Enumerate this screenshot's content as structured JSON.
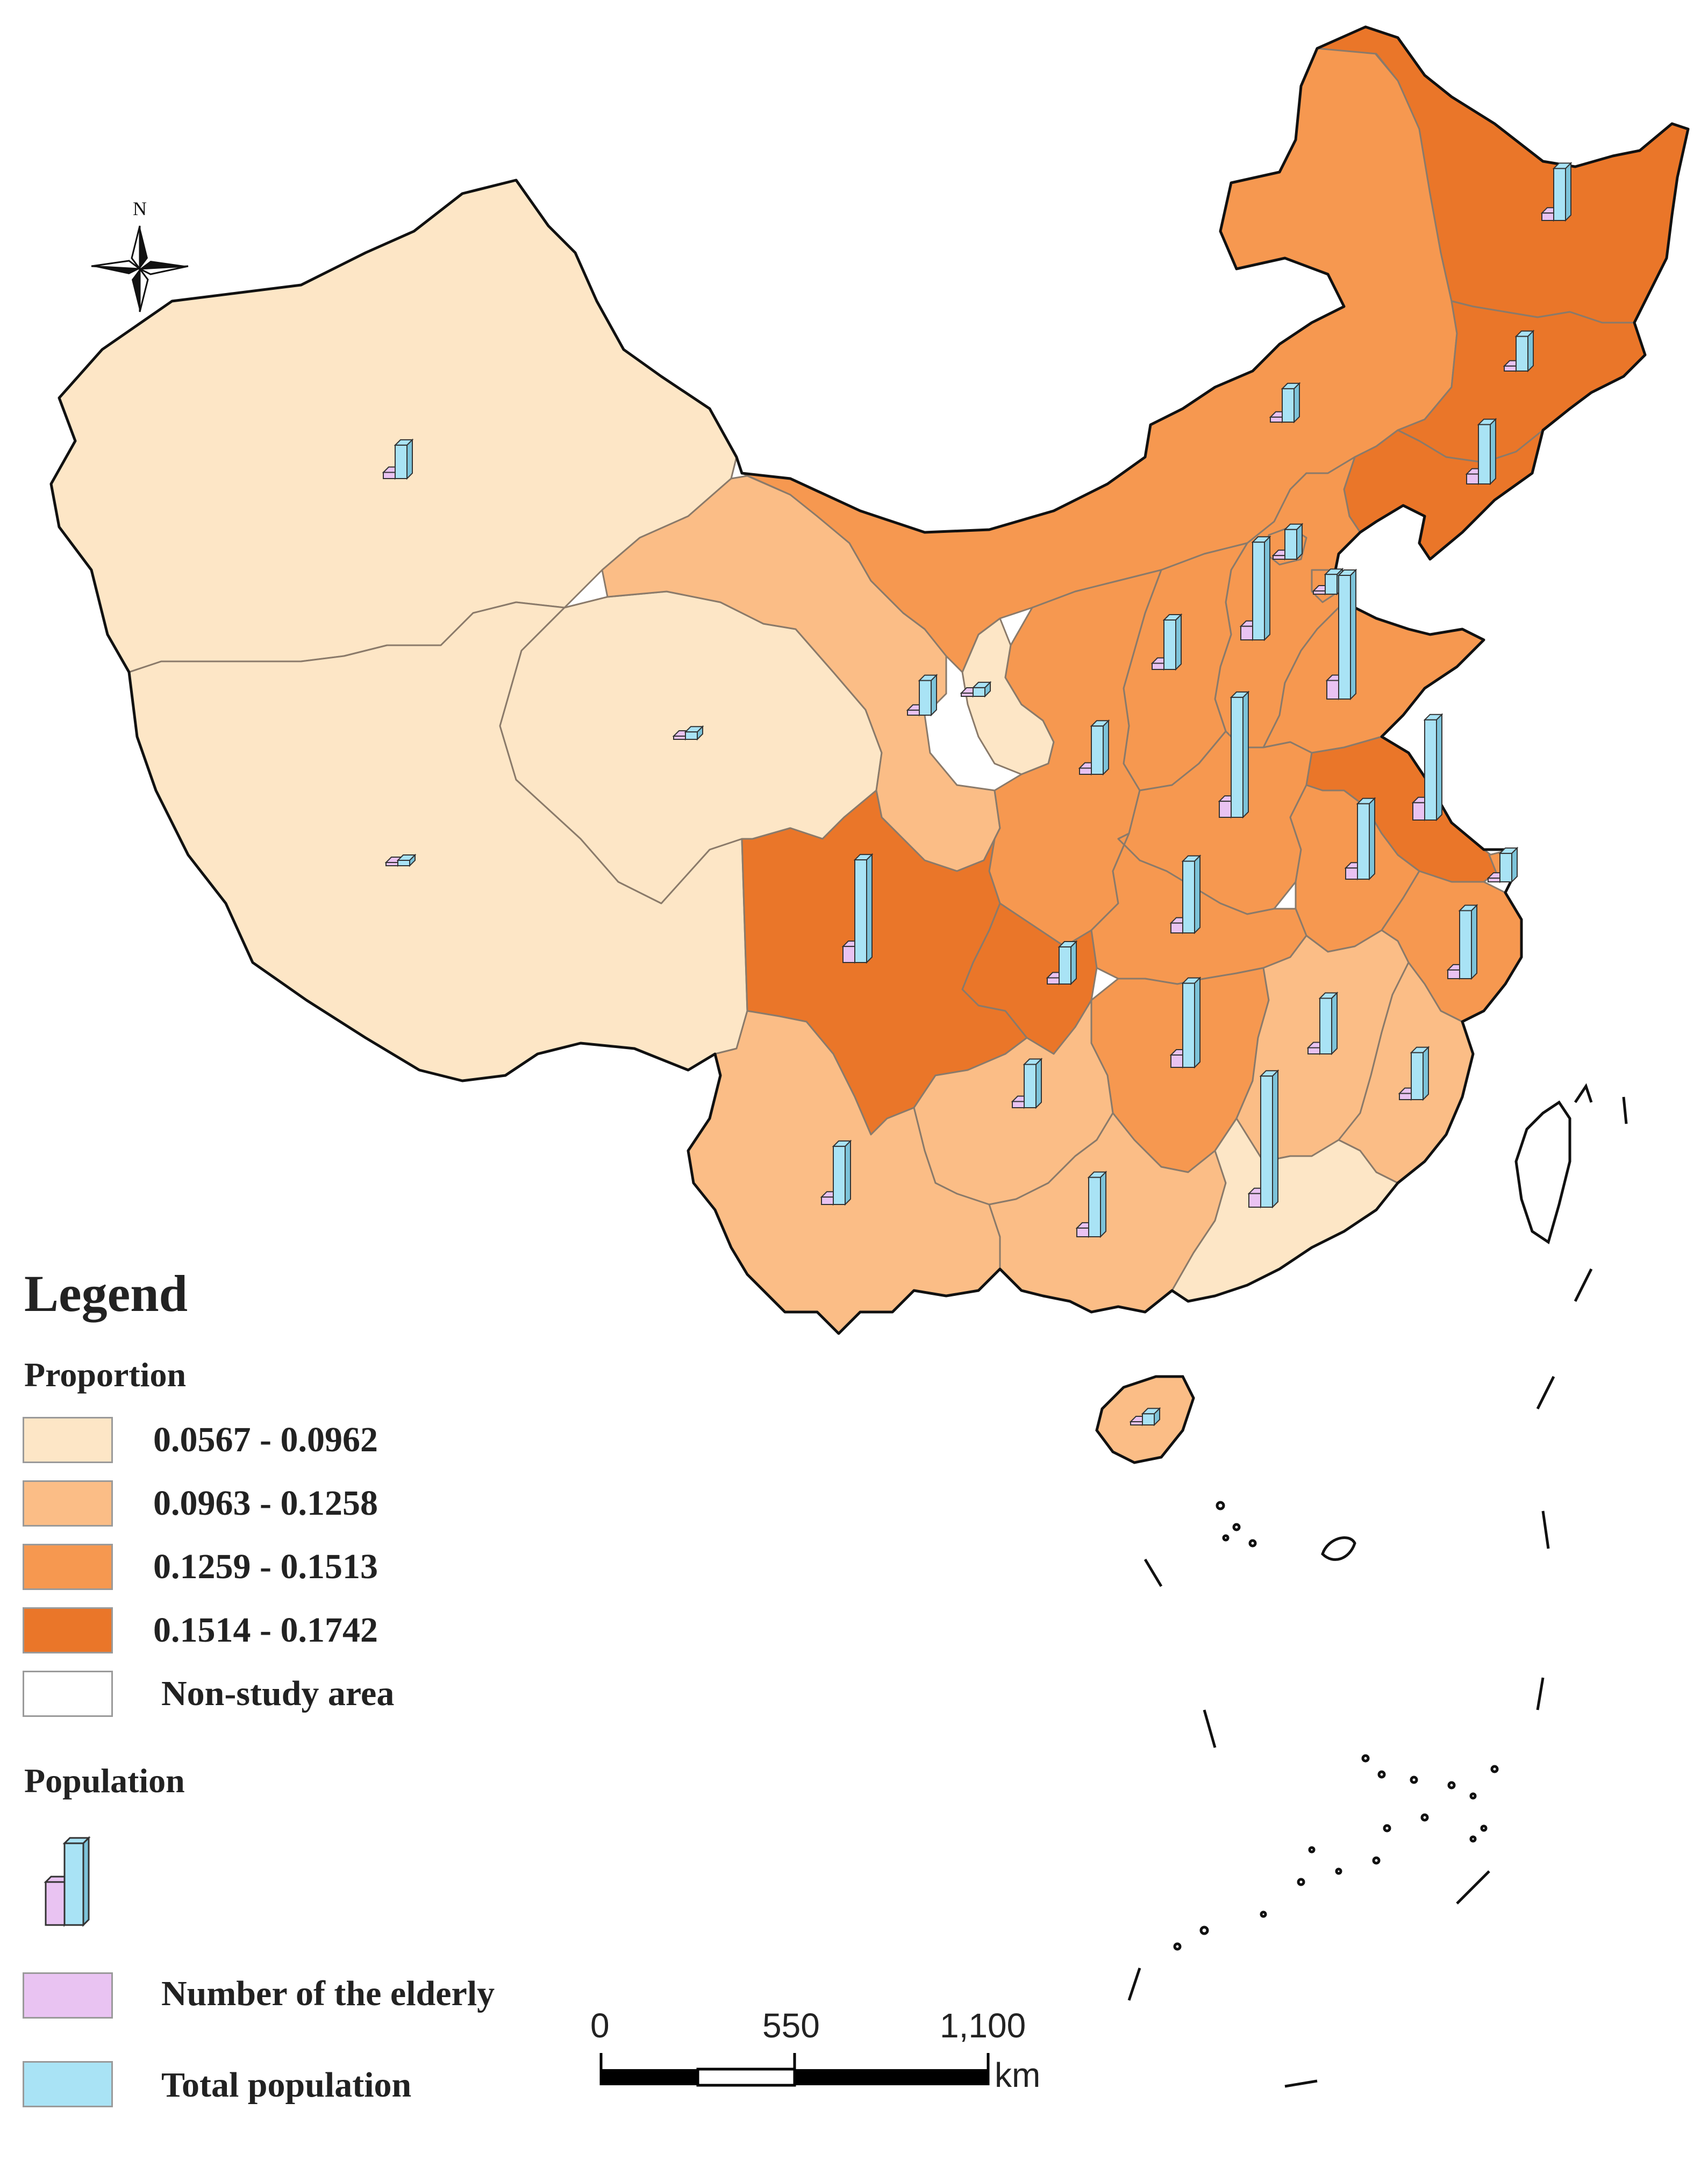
{
  "north_arrow": {
    "label": "N"
  },
  "legend": {
    "title": "Legend",
    "proportion": {
      "heading": "Proportion",
      "classes": [
        {
          "label": "0.0567 - 0.0962",
          "color": "#fde6c6"
        },
        {
          "label": "0.0963 - 0.1258",
          "color": "#fbbd86"
        },
        {
          "label": "0.1259 - 0.1513",
          "color": "#f69850"
        },
        {
          "label": "0.1514 - 0.1742",
          "color": "#ea7629"
        }
      ],
      "non_study": {
        "label": "Non-study area",
        "color": "#ffffff"
      }
    },
    "population": {
      "heading": "Population",
      "elderly": {
        "label": "Number of the elderly",
        "color": "#e9c3f2"
      },
      "total": {
        "label": "Total population",
        "color": "#a9e3f5"
      }
    }
  },
  "scale_bar": {
    "ticks": [
      "0",
      "550",
      "1,100"
    ],
    "unit": "km"
  },
  "bar_symbols": [
    {
      "region": "Xinjiang",
      "total": 0.27,
      "elderly": 0.05
    },
    {
      "region": "Qinghai",
      "total": 0.06,
      "elderly": 0.01
    },
    {
      "region": "Tibet",
      "total": 0.04,
      "elderly": 0.01
    },
    {
      "region": "Heilongjiang",
      "total": 0.42,
      "elderly": 0.06
    },
    {
      "region": "Jilin",
      "total": 0.28,
      "elderly": 0.04
    },
    {
      "region": "Liaoning",
      "total": 0.48,
      "elderly": 0.08
    },
    {
      "region": "Inner Mongolia",
      "total": 0.27,
      "elderly": 0.04
    },
    {
      "region": "Beijing",
      "total": 0.24,
      "elderly": 0.03
    },
    {
      "region": "Tianjin",
      "total": 0.16,
      "elderly": 0.02
    },
    {
      "region": "Hebei",
      "total": 0.79,
      "elderly": 0.11
    },
    {
      "region": "Shanxi",
      "total": 0.4,
      "elderly": 0.05
    },
    {
      "region": "Shandong",
      "total": 1.0,
      "elderly": 0.15
    },
    {
      "region": "Ningxia",
      "total": 0.07,
      "elderly": 0.01
    },
    {
      "region": "Gansu",
      "total": 0.28,
      "elderly": 0.04
    },
    {
      "region": "Shaanxi",
      "total": 0.39,
      "elderly": 0.05
    },
    {
      "region": "Henan",
      "total": 0.97,
      "elderly": 0.13
    },
    {
      "region": "Jiangsu",
      "total": 0.81,
      "elderly": 0.14
    },
    {
      "region": "Anhui",
      "total": 0.61,
      "elderly": 0.09
    },
    {
      "region": "Shanghai",
      "total": 0.23,
      "elderly": 0.03
    },
    {
      "region": "Hubei",
      "total": 0.58,
      "elderly": 0.08
    },
    {
      "region": "Sichuan",
      "total": 0.83,
      "elderly": 0.13
    },
    {
      "region": "Chongqing",
      "total": 0.3,
      "elderly": 0.05
    },
    {
      "region": "Zhejiang",
      "total": 0.55,
      "elderly": 0.07
    },
    {
      "region": "Hunan",
      "total": 0.68,
      "elderly": 0.1
    },
    {
      "region": "Jiangxi",
      "total": 0.45,
      "elderly": 0.05
    },
    {
      "region": "Fujian",
      "total": 0.38,
      "elderly": 0.05
    },
    {
      "region": "Guizhou",
      "total": 0.35,
      "elderly": 0.05
    },
    {
      "region": "Yunnan",
      "total": 0.47,
      "elderly": 0.06
    },
    {
      "region": "Guangxi",
      "total": 0.48,
      "elderly": 0.07
    },
    {
      "region": "Guangdong",
      "total": 1.06,
      "elderly": 0.11
    },
    {
      "region": "Hainan",
      "total": 0.09,
      "elderly": 0.01
    }
  ]
}
